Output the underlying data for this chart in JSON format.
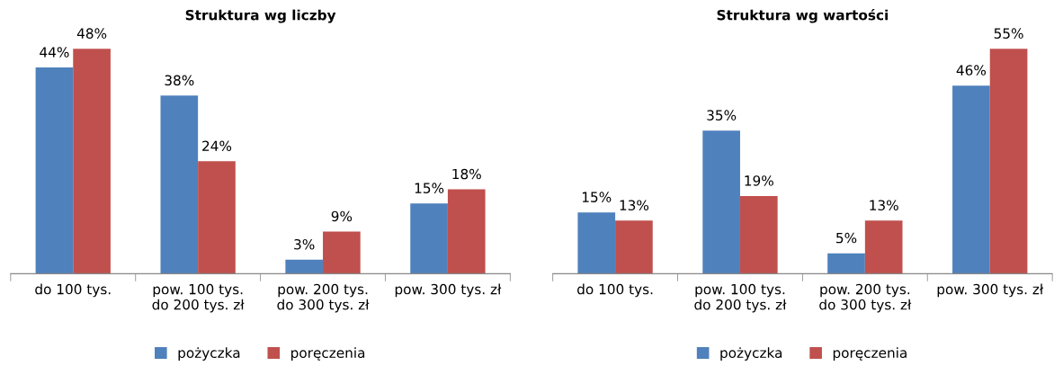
{
  "chart_data": [
    {
      "type": "bar",
      "title": "Struktura wg liczby",
      "categories": [
        "do 100 tys.",
        "pow. 100 tys.\ndo 200 tys. zł",
        "pow. 200 tys.\ndo 300 tys. zł",
        "pow. 300 tys. zł"
      ],
      "series": [
        {
          "name": "pożyczka",
          "color": "#4f81bd",
          "values": [
            44,
            38,
            3,
            15
          ],
          "value_labels": [
            "44%",
            "38%",
            "3%",
            "15%"
          ]
        },
        {
          "name": "poręczenia",
          "color": "#c0504d",
          "values": [
            48,
            24,
            9,
            18
          ],
          "value_labels": [
            "48%",
            "24%",
            "9%",
            "18%"
          ]
        }
      ],
      "tick_labels": "x",
      "grid": false,
      "legend": "bottom"
    },
    {
      "type": "bar",
      "title": "Struktura wg wartości",
      "categories": [
        "do 100 tys.",
        "pow. 100 tys.\ndo 200 tys. zł",
        "pow. 200 tys.\ndo 300 tys. zł",
        "pow. 300 tys. zł"
      ],
      "series": [
        {
          "name": "pożyczka",
          "color": "#4f81bd",
          "values": [
            15,
            35,
            5,
            46
          ],
          "value_labels": [
            "15%",
            "35%",
            "5%",
            "46%"
          ]
        },
        {
          "name": "poręczenia",
          "color": "#c0504d",
          "values": [
            13,
            19,
            13,
            55
          ],
          "value_labels": [
            "13%",
            "19%",
            "13%",
            "55%"
          ]
        }
      ],
      "tick_labels": "x",
      "grid": false,
      "legend": "bottom"
    }
  ]
}
